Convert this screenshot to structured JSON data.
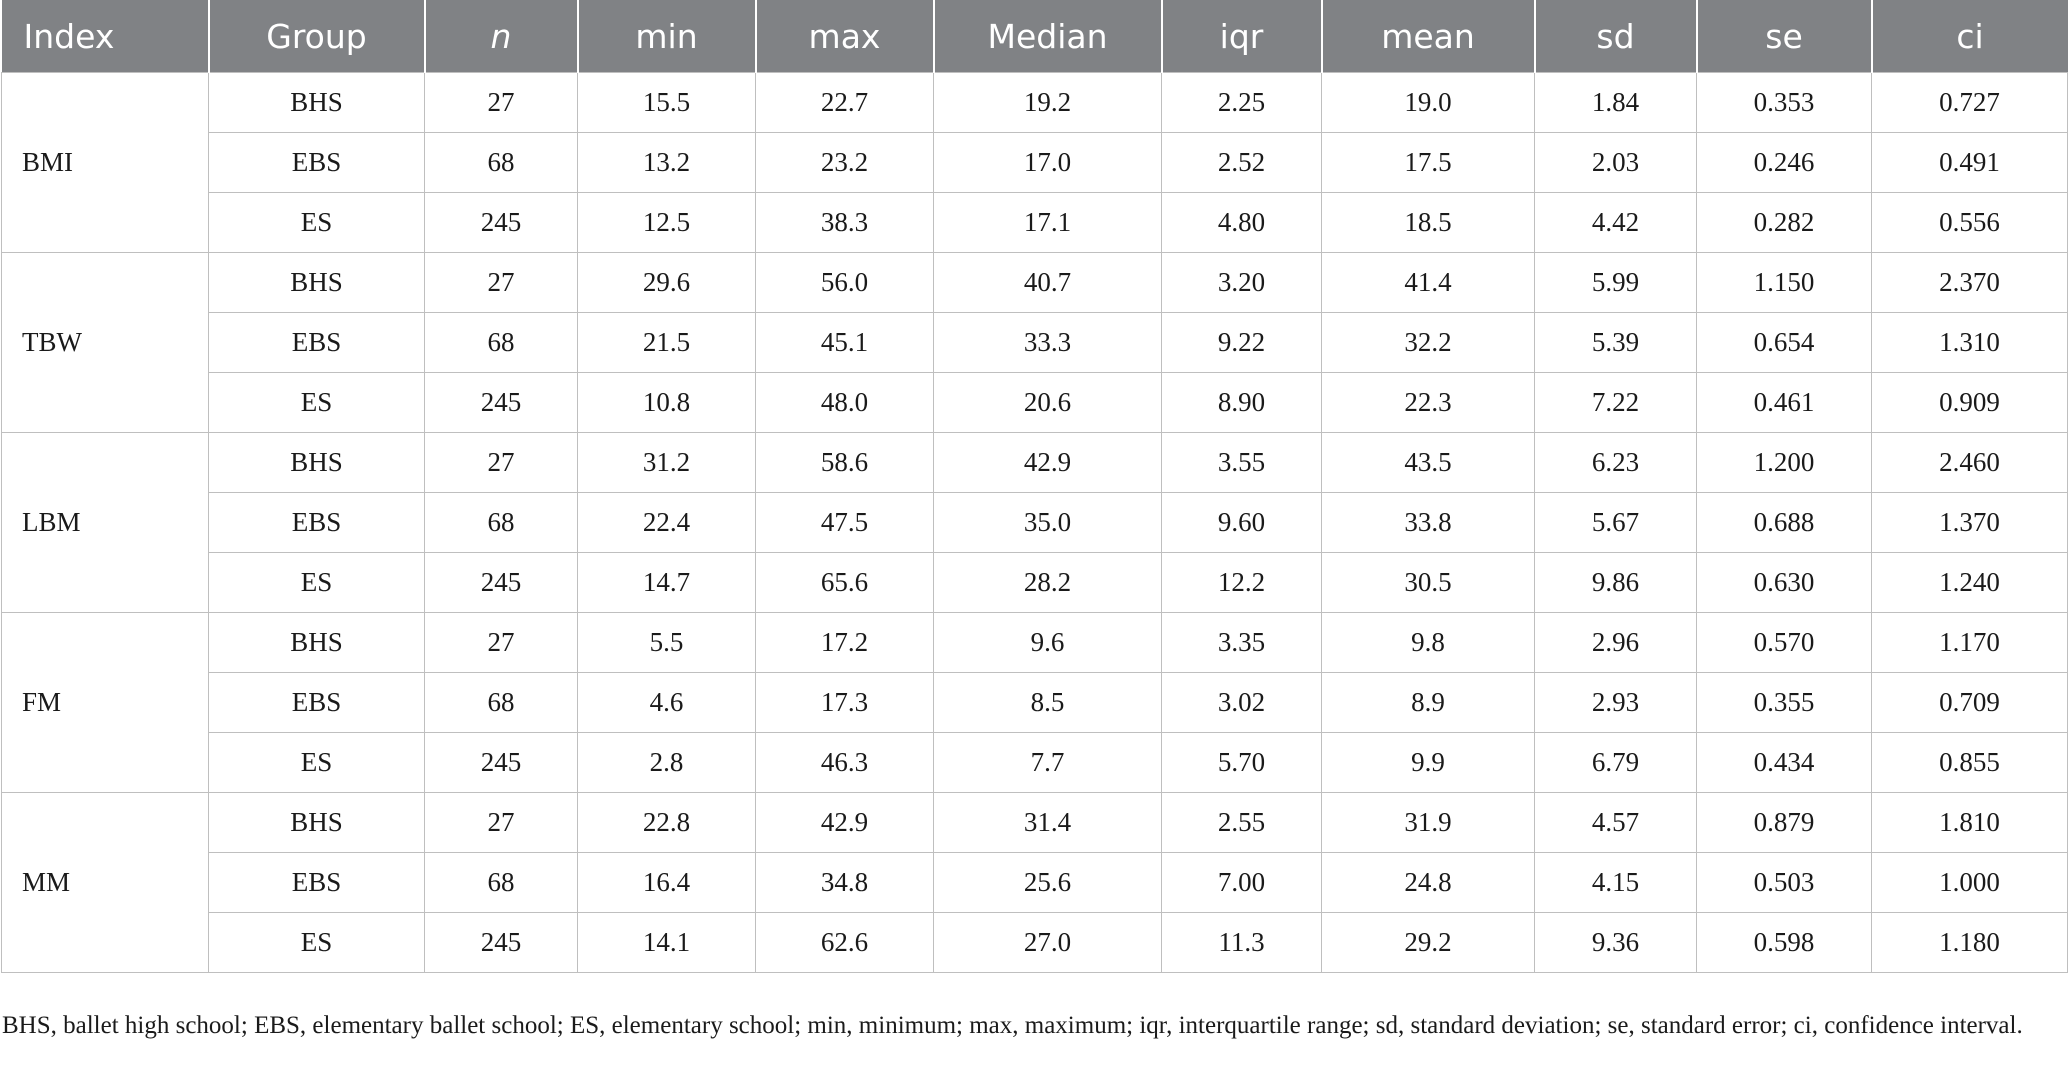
{
  "table": {
    "headers": [
      "Index",
      "Group",
      "n",
      "min",
      "max",
      "Median",
      "iqr",
      "mean",
      "sd",
      "se",
      "ci"
    ],
    "blocks": [
      {
        "index": "BMI",
        "rows": [
          [
            "BHS",
            "27",
            "15.5",
            "22.7",
            "19.2",
            "2.25",
            "19.0",
            "1.84",
            "0.353",
            "0.727"
          ],
          [
            "EBS",
            "68",
            "13.2",
            "23.2",
            "17.0",
            "2.52",
            "17.5",
            "2.03",
            "0.246",
            "0.491"
          ],
          [
            "ES",
            "245",
            "12.5",
            "38.3",
            "17.1",
            "4.80",
            "18.5",
            "4.42",
            "0.282",
            "0.556"
          ]
        ]
      },
      {
        "index": "TBW",
        "rows": [
          [
            "BHS",
            "27",
            "29.6",
            "56.0",
            "40.7",
            "3.20",
            "41.4",
            "5.99",
            "1.150",
            "2.370"
          ],
          [
            "EBS",
            "68",
            "21.5",
            "45.1",
            "33.3",
            "9.22",
            "32.2",
            "5.39",
            "0.654",
            "1.310"
          ],
          [
            "ES",
            "245",
            "10.8",
            "48.0",
            "20.6",
            "8.90",
            "22.3",
            "7.22",
            "0.461",
            "0.909"
          ]
        ]
      },
      {
        "index": "LBM",
        "rows": [
          [
            "BHS",
            "27",
            "31.2",
            "58.6",
            "42.9",
            "3.55",
            "43.5",
            "6.23",
            "1.200",
            "2.460"
          ],
          [
            "EBS",
            "68",
            "22.4",
            "47.5",
            "35.0",
            "9.60",
            "33.8",
            "5.67",
            "0.688",
            "1.370"
          ],
          [
            "ES",
            "245",
            "14.7",
            "65.6",
            "28.2",
            "12.2",
            "30.5",
            "9.86",
            "0.630",
            "1.240"
          ]
        ]
      },
      {
        "index": "FM",
        "rows": [
          [
            "BHS",
            "27",
            "5.5",
            "17.2",
            "9.6",
            "3.35",
            "9.8",
            "2.96",
            "0.570",
            "1.170"
          ],
          [
            "EBS",
            "68",
            "4.6",
            "17.3",
            "8.5",
            "3.02",
            "8.9",
            "2.93",
            "0.355",
            "0.709"
          ],
          [
            "ES",
            "245",
            "2.8",
            "46.3",
            "7.7",
            "5.70",
            "9.9",
            "6.79",
            "0.434",
            "0.855"
          ]
        ]
      },
      {
        "index": "MM",
        "rows": [
          [
            "BHS",
            "27",
            "22.8",
            "42.9",
            "31.4",
            "2.55",
            "31.9",
            "4.57",
            "0.879",
            "1.810"
          ],
          [
            "EBS",
            "68",
            "16.4",
            "34.8",
            "25.6",
            "7.00",
            "24.8",
            "4.15",
            "0.503",
            "1.000"
          ],
          [
            "ES",
            "245",
            "14.1",
            "62.6",
            "27.0",
            "11.3",
            "29.2",
            "9.36",
            "0.598",
            "1.180"
          ]
        ]
      }
    ]
  },
  "footnote": "BHS, ballet high school; EBS, elementary ballet school; ES, elementary school; min, minimum; max, maximum; iqr, interquartile range; sd, standard deviation; se, standard error; ci, confidence interval."
}
